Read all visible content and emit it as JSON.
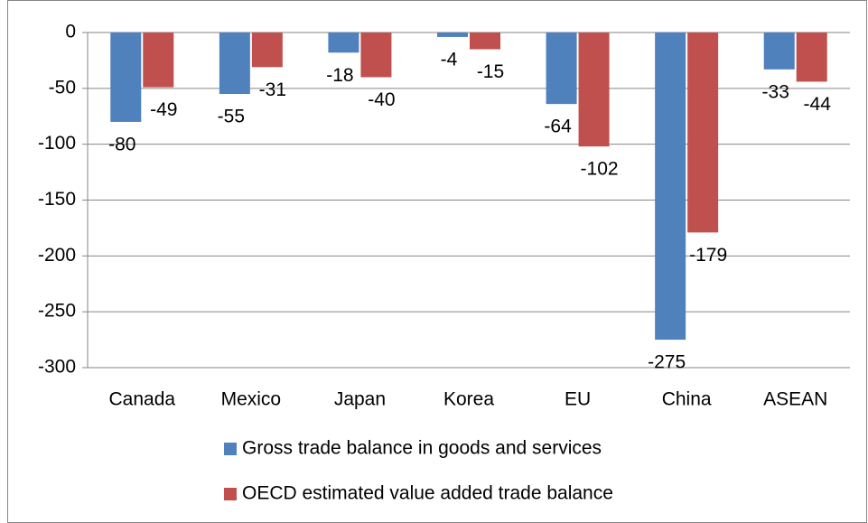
{
  "chart_data": {
    "type": "bar",
    "categories": [
      "Canada",
      "Mexico",
      "Japan",
      "Korea",
      "EU",
      "China",
      "ASEAN"
    ],
    "series": [
      {
        "name": "Gross trade balance in goods and services",
        "color": "#4f81bd",
        "values": [
          -80,
          -55,
          -18,
          -4,
          -64,
          -275,
          -33
        ]
      },
      {
        "name": "OECD estimated value added trade balance",
        "color": "#c0504d",
        "values": [
          -49,
          -31,
          -40,
          -15,
          -102,
          -179,
          -44
        ]
      }
    ],
    "ylim": [
      -300,
      0
    ],
    "yticks": [
      0,
      -50,
      -100,
      -150,
      -200,
      -250,
      -300
    ],
    "grid": true,
    "legend": "bottom"
  }
}
